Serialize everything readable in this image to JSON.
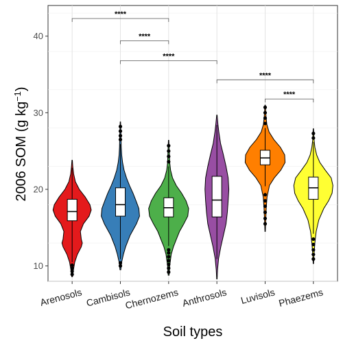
{
  "chart_data": {
    "type": "violin",
    "xlabel": "Soil types",
    "ylabel_prefix": "2006  SOM (g kg",
    "ylabel_exp": "−1",
    "ylabel_suffix": ")",
    "ylim": [
      8,
      44
    ],
    "yticks": [
      10,
      20,
      30,
      40
    ],
    "grid": true,
    "categories": [
      "Arenosols",
      "Cambisols",
      "Chernozems",
      "Anthrosols",
      "Luvisols",
      "Phaezems"
    ],
    "series": [
      {
        "category": "Arenosols",
        "color": "#e41a1c",
        "min": 8.6,
        "max": 23.8,
        "q1": 15.9,
        "median": 17.1,
        "q3": 18.7,
        "whisker_low": 10.5,
        "whisker_high": 22.8,
        "outliers_low": [
          8.9,
          9.3,
          9.7,
          10.1
        ],
        "outliers_high": [],
        "density": [
          [
            8.6,
            0.02
          ],
          [
            9.5,
            0.06
          ],
          [
            10.5,
            0.12
          ],
          [
            11.5,
            0.24
          ],
          [
            12.5,
            0.42
          ],
          [
            13.0,
            0.47
          ],
          [
            13.5,
            0.42
          ],
          [
            14.5,
            0.38
          ],
          [
            15.5,
            0.52
          ],
          [
            16.5,
            0.78
          ],
          [
            17.3,
            0.88
          ],
          [
            18.0,
            0.82
          ],
          [
            19.0,
            0.6
          ],
          [
            20.0,
            0.33
          ],
          [
            21.0,
            0.15
          ],
          [
            22.0,
            0.07
          ],
          [
            23.0,
            0.03
          ],
          [
            23.8,
            0.01
          ]
        ]
      },
      {
        "category": "Cambisols",
        "color": "#377eb8",
        "min": 9.5,
        "max": 28.8,
        "q1": 16.5,
        "median": 18.0,
        "q3": 20.2,
        "whisker_low": 10.9,
        "whisker_high": 25.9,
        "outliers_low": [
          10.0,
          10.4
        ],
        "outliers_high": [
          26.5,
          27.0,
          27.6,
          28.2
        ],
        "density": [
          [
            9.5,
            0.02
          ],
          [
            10.5,
            0.06
          ],
          [
            11.5,
            0.14
          ],
          [
            12.5,
            0.24
          ],
          [
            14.0,
            0.45
          ],
          [
            15.5,
            0.74
          ],
          [
            16.5,
            0.88
          ],
          [
            17.5,
            0.85
          ],
          [
            18.5,
            0.72
          ],
          [
            19.5,
            0.58
          ],
          [
            20.5,
            0.42
          ],
          [
            21.5,
            0.28
          ],
          [
            22.5,
            0.17
          ],
          [
            23.5,
            0.1
          ],
          [
            24.5,
            0.06
          ],
          [
            25.5,
            0.04
          ],
          [
            27.0,
            0.03
          ],
          [
            28.8,
            0.01
          ]
        ]
      },
      {
        "category": "Chernozems",
        "color": "#4daf4a",
        "min": 8.8,
        "max": 26.4,
        "q1": 16.4,
        "median": 17.6,
        "q3": 18.9,
        "whisker_low": 12.6,
        "whisker_high": 23.0,
        "outliers_low": [
          9.2,
          9.7,
          10.2,
          10.7,
          11.2,
          11.7,
          12.1
        ],
        "outliers_high": [
          23.6,
          24.3,
          25.0,
          25.7
        ],
        "density": [
          [
            8.8,
            0.02
          ],
          [
            10.0,
            0.05
          ],
          [
            11.5,
            0.12
          ],
          [
            12.5,
            0.22
          ],
          [
            13.5,
            0.36
          ],
          [
            14.5,
            0.5
          ],
          [
            15.5,
            0.7
          ],
          [
            16.5,
            0.88
          ],
          [
            17.5,
            0.92
          ],
          [
            18.5,
            0.8
          ],
          [
            19.5,
            0.6
          ],
          [
            20.5,
            0.35
          ],
          [
            21.5,
            0.18
          ],
          [
            22.5,
            0.09
          ],
          [
            23.5,
            0.05
          ],
          [
            25.0,
            0.03
          ],
          [
            26.4,
            0.01
          ]
        ]
      },
      {
        "category": "Anthrosols",
        "color": "#984ea3",
        "min": 8.3,
        "max": 29.7,
        "q1": 16.4,
        "median": 18.6,
        "q3": 21.7,
        "whisker_low": 10.9,
        "whisker_high": 28.4,
        "outliers_low": [],
        "outliers_high": [],
        "density": [
          [
            8.3,
            0.01
          ],
          [
            9.5,
            0.03
          ],
          [
            11.0,
            0.08
          ],
          [
            12.5,
            0.18
          ],
          [
            14.0,
            0.3
          ],
          [
            15.5,
            0.42
          ],
          [
            17.0,
            0.48
          ],
          [
            18.5,
            0.52
          ],
          [
            20.0,
            0.55
          ],
          [
            21.5,
            0.52
          ],
          [
            23.0,
            0.42
          ],
          [
            24.5,
            0.3
          ],
          [
            26.0,
            0.17
          ],
          [
            27.5,
            0.09
          ],
          [
            28.5,
            0.05
          ],
          [
            29.7,
            0.01
          ]
        ]
      },
      {
        "category": "Luvisols",
        "color": "#ff7f00",
        "min": 14.5,
        "max": 31.0,
        "q1": 23.2,
        "median": 24.1,
        "q3": 25.1,
        "whisker_low": 20.4,
        "whisker_high": 28.0,
        "outliers_low": [
          15.5,
          16.2,
          17.0,
          17.8,
          18.5,
          19.3
        ],
        "outliers_high": [
          28.6,
          29.3,
          30.0,
          30.7
        ],
        "density": [
          [
            14.5,
            0.01
          ],
          [
            16.0,
            0.03
          ],
          [
            17.5,
            0.05
          ],
          [
            19.0,
            0.09
          ],
          [
            20.5,
            0.2
          ],
          [
            21.5,
            0.42
          ],
          [
            22.5,
            0.72
          ],
          [
            23.5,
            0.92
          ],
          [
            24.5,
            0.9
          ],
          [
            25.5,
            0.7
          ],
          [
            26.5,
            0.4
          ],
          [
            27.5,
            0.18
          ],
          [
            28.5,
            0.08
          ],
          [
            29.5,
            0.04
          ],
          [
            31.0,
            0.01
          ]
        ]
      },
      {
        "category": "Phaezems",
        "color": "#ffff33",
        "min": 10.3,
        "max": 27.9,
        "q1": 18.7,
        "median": 20.2,
        "q3": 21.6,
        "whisker_low": 14.2,
        "whisker_high": 26.2,
        "outliers_low": [
          10.9,
          11.5,
          12.1,
          12.8,
          13.5
        ],
        "outliers_high": [
          26.7,
          27.3
        ],
        "density": [
          [
            10.3,
            0.01
          ],
          [
            11.5,
            0.03
          ],
          [
            13.0,
            0.07
          ],
          [
            14.5,
            0.13
          ],
          [
            16.0,
            0.25
          ],
          [
            17.5,
            0.48
          ],
          [
            18.5,
            0.7
          ],
          [
            19.5,
            0.86
          ],
          [
            20.5,
            0.9
          ],
          [
            21.5,
            0.82
          ],
          [
            22.5,
            0.55
          ],
          [
            23.5,
            0.3
          ],
          [
            24.5,
            0.15
          ],
          [
            25.5,
            0.07
          ],
          [
            26.5,
            0.03
          ],
          [
            27.9,
            0.01
          ]
        ]
      }
    ],
    "significance": [
      {
        "from": "Arenosols",
        "to": "Chernozems",
        "y": 42.3,
        "label": "****"
      },
      {
        "from": "Cambisols",
        "to": "Chernozems",
        "y": 39.4,
        "label": "****"
      },
      {
        "from": "Cambisols",
        "to": "Anthrosols",
        "y": 36.8,
        "label": "****"
      },
      {
        "from": "Anthrosols",
        "to": "Phaezems",
        "y": 34.3,
        "label": "****"
      },
      {
        "from": "Luvisols",
        "to": "Phaezems",
        "y": 31.8,
        "label": "****"
      }
    ]
  }
}
